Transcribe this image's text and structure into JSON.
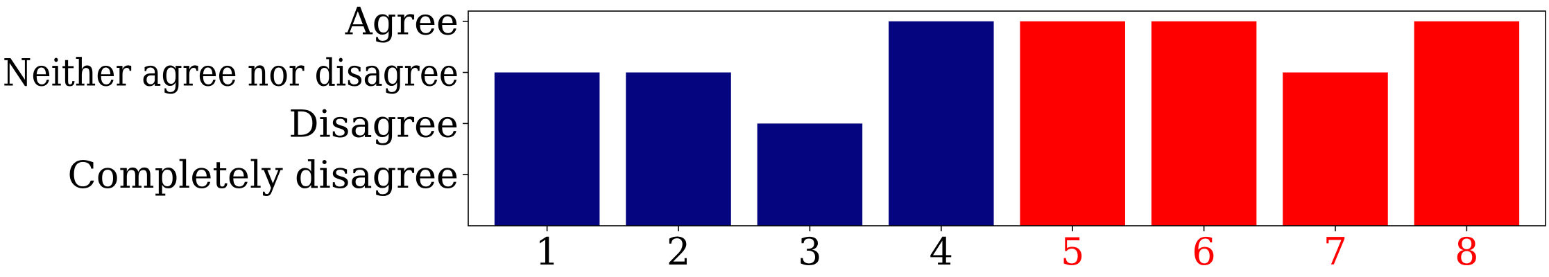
{
  "chart_data": {
    "type": "bar",
    "categories": [
      "1",
      "2",
      "3",
      "4",
      "5",
      "6",
      "7",
      "8"
    ],
    "values": [
      3,
      3,
      2,
      4,
      4,
      4,
      3,
      4
    ],
    "y_tick_values": [
      1,
      2,
      3,
      4
    ],
    "y_tick_labels": [
      "Completely disagree",
      "Disagree",
      "Neither agree nor disagree",
      "Agree"
    ],
    "ylim": [
      0,
      4.2
    ],
    "title": "",
    "xlabel": "",
    "ylabel": "",
    "grid": false,
    "legend": "none",
    "bar_colors": [
      "#050580",
      "#050580",
      "#050580",
      "#050580",
      "#ff0000",
      "#ff0000",
      "#ff0000",
      "#ff0000"
    ],
    "x_tick_label_colors": [
      "#000000",
      "#000000",
      "#000000",
      "#000000",
      "#ff0000",
      "#ff0000",
      "#ff0000",
      "#ff0000"
    ]
  }
}
